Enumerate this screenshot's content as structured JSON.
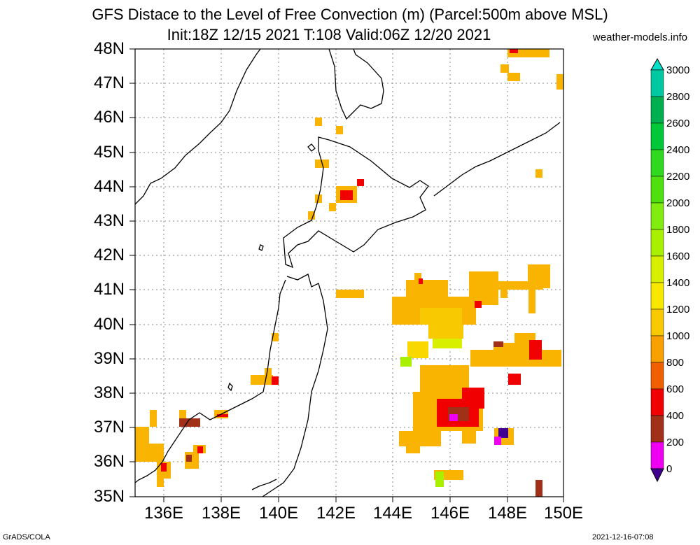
{
  "title_line1": "GFS Distace to the Level of Free Convection (m) (Parcel:500m above MSL)",
  "title_line2": "Init:18Z 12/15 2021 T:108 Valid:06Z 12/20 2021",
  "site": "weather-models.info",
  "footer_left": "GrADS/COLA",
  "footer_right": "2021-12-16-07:08",
  "map": {
    "lat_range": [
      35,
      48
    ],
    "lon_range": [
      135,
      150
    ],
    "lat_labels": [
      "48N",
      "47N",
      "46N",
      "45N",
      "44N",
      "43N",
      "42N",
      "41N",
      "40N",
      "39N",
      "38N",
      "37N",
      "36N",
      "35N"
    ],
    "lon_labels": [
      "136E",
      "138E",
      "140E",
      "142E",
      "144E",
      "146E",
      "148E",
      "150E"
    ]
  },
  "colorbar": {
    "labels": [
      "3000",
      "2800",
      "2600",
      "2400",
      "2200",
      "2000",
      "1800",
      "1600",
      "1400",
      "1200",
      "1000",
      "800",
      "600",
      "400",
      "200",
      "0"
    ],
    "colors": [
      "#00e0c8",
      "#00c8a0",
      "#00b050",
      "#00c838",
      "#30d820",
      "#50e010",
      "#80ec10",
      "#a8f000",
      "#d8f000",
      "#f8e800",
      "#f8c800",
      "#f8a000",
      "#f06000",
      "#f00000",
      "#a03018",
      "#f000f0",
      "#400090"
    ]
  }
}
